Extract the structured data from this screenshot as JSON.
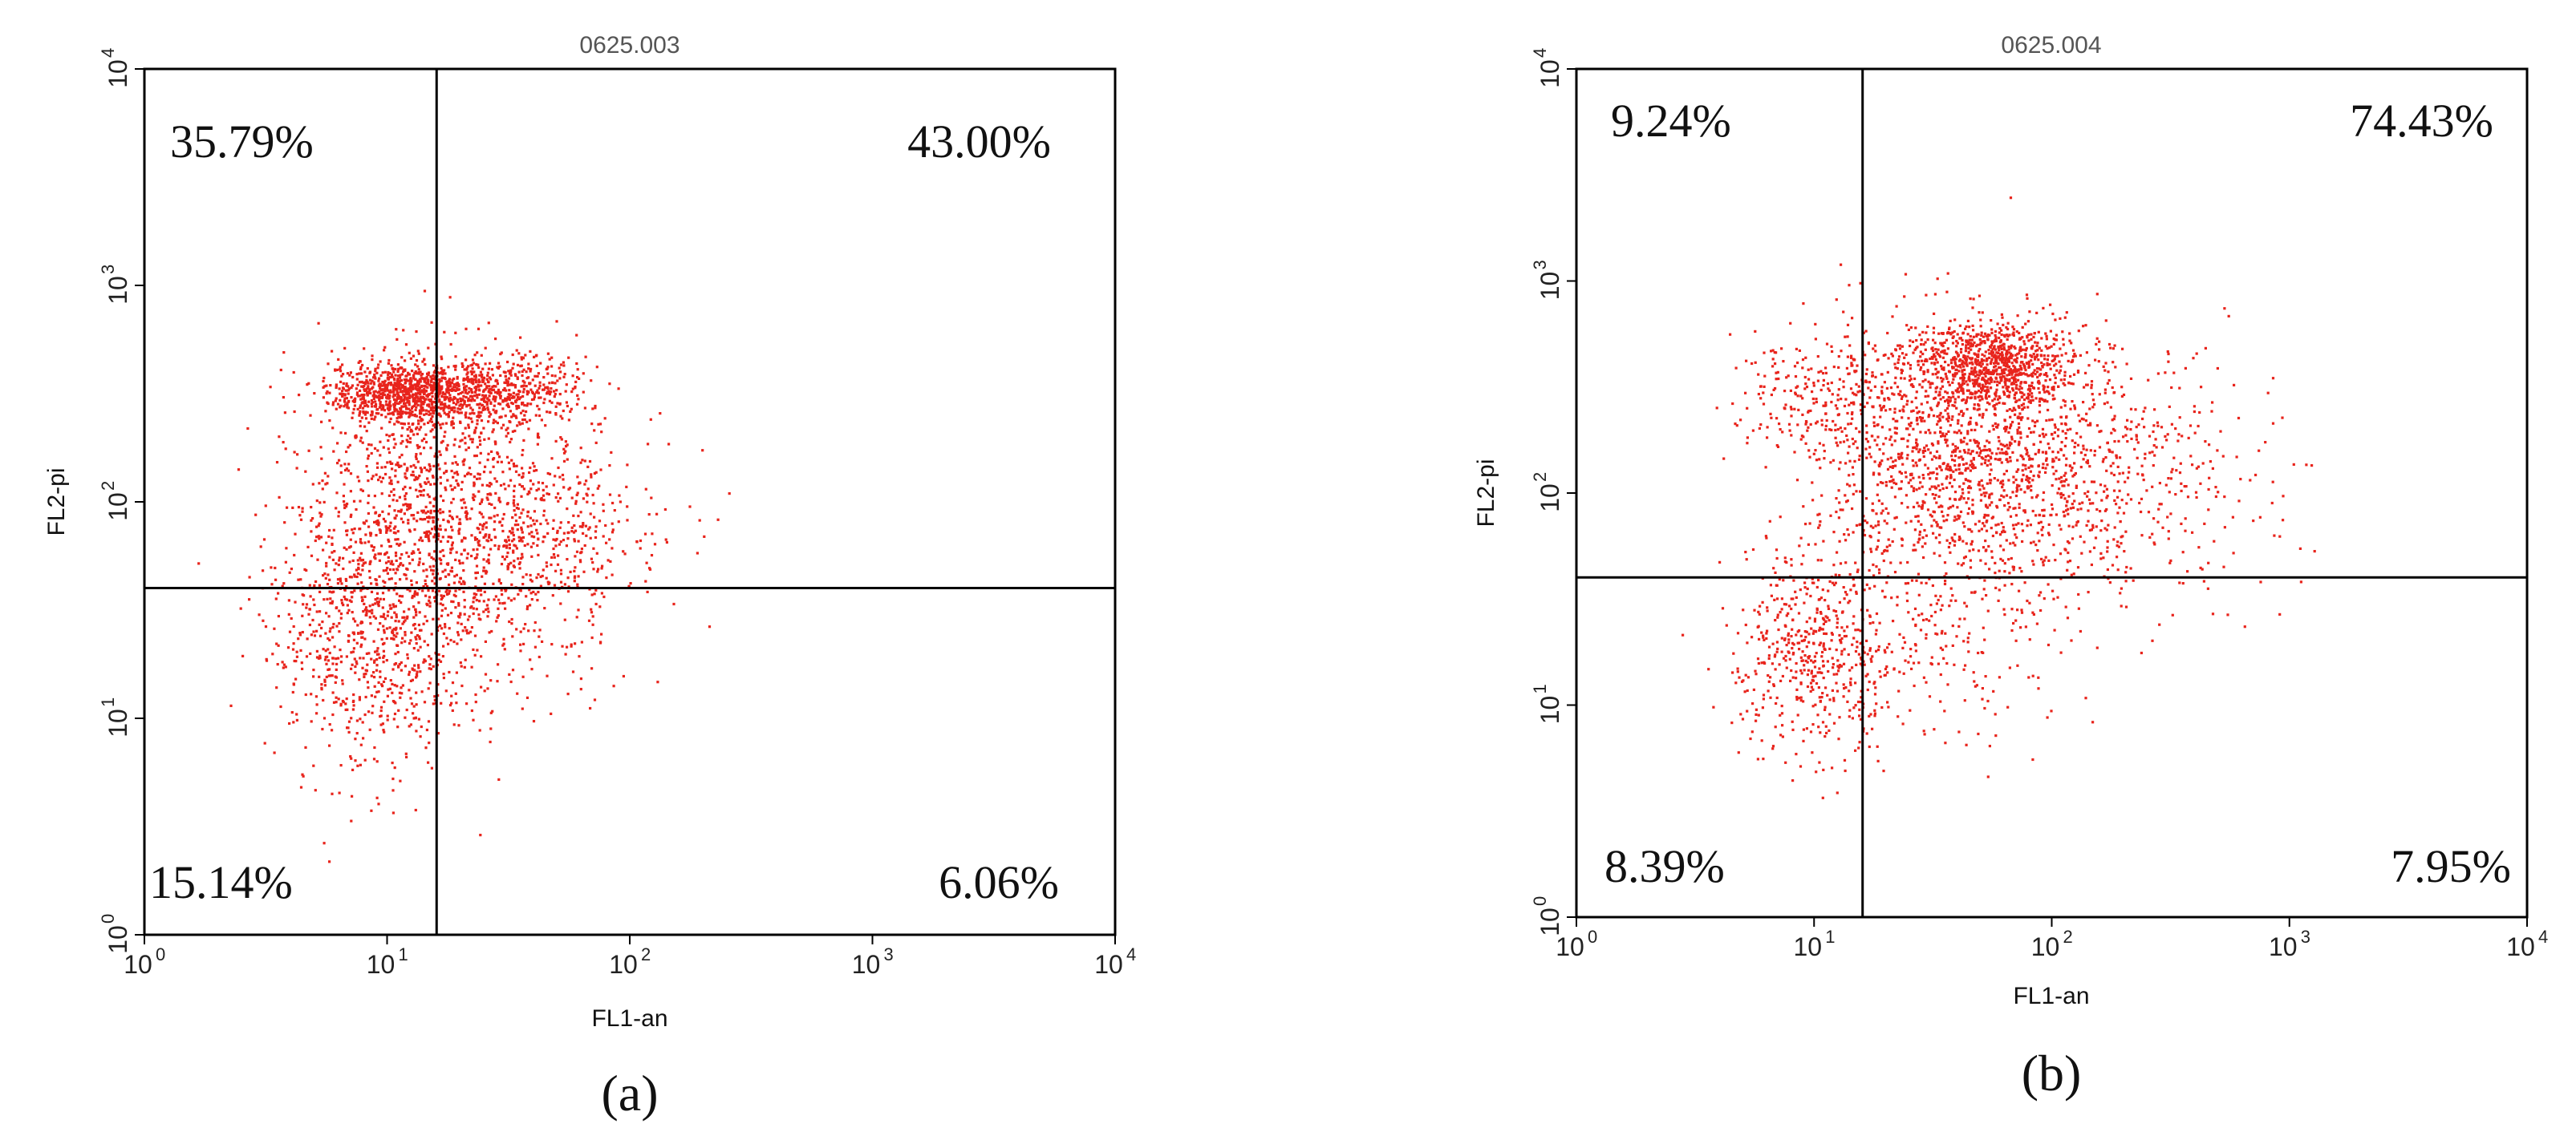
{
  "chart_data": [
    {
      "type": "scatter",
      "panel_label": "(a)",
      "title": "0625.003",
      "xlabel": "FL1-an",
      "ylabel": "FL2-pi",
      "x_scale": "log",
      "y_scale": "log",
      "xlim": [
        1,
        10000
      ],
      "ylim": [
        1,
        10000
      ],
      "x_ticks": [
        {
          "base": "10",
          "exp": "0"
        },
        {
          "base": "10",
          "exp": "1"
        },
        {
          "base": "10",
          "exp": "2"
        },
        {
          "base": "10",
          "exp": "3"
        },
        {
          "base": "10",
          "exp": "4"
        }
      ],
      "y_ticks": [
        {
          "base": "10",
          "exp": "0"
        },
        {
          "base": "10",
          "exp": "1"
        },
        {
          "base": "10",
          "exp": "2"
        },
        {
          "base": "10",
          "exp": "3"
        },
        {
          "base": "10",
          "exp": "4"
        }
      ],
      "quadrant_gate": {
        "x": 16,
        "y": 40
      },
      "quadrants": {
        "upper_left": "35.79%",
        "upper_right": "43.00%",
        "lower_left": "15.14%",
        "lower_right": "6.06%"
      },
      "point_color": "#e8241c",
      "clusters": [
        {
          "cx": 12,
          "cy": 320,
          "sx": 0.16,
          "sy": 0.07,
          "n": 900
        },
        {
          "cx": 30,
          "cy": 330,
          "sx": 0.18,
          "sy": 0.08,
          "n": 500
        },
        {
          "cx": 15,
          "cy": 110,
          "sx": 0.26,
          "sy": 0.32,
          "n": 900
        },
        {
          "cx": 40,
          "cy": 70,
          "sx": 0.28,
          "sy": 0.22,
          "n": 500
        },
        {
          "cx": 8,
          "cy": 25,
          "sx": 0.2,
          "sy": 0.3,
          "n": 700
        },
        {
          "cx": 20,
          "cy": 25,
          "sx": 0.3,
          "sy": 0.25,
          "n": 250
        }
      ]
    },
    {
      "type": "scatter",
      "panel_label": "(b)",
      "title": "0625.004",
      "xlabel": "FL1-an",
      "ylabel": "FL2-pi",
      "x_scale": "log",
      "y_scale": "log",
      "xlim": [
        1,
        10000
      ],
      "ylim": [
        1,
        10000
      ],
      "x_ticks": [
        {
          "base": "10",
          "exp": "0"
        },
        {
          "base": "10",
          "exp": "1"
        },
        {
          "base": "10",
          "exp": "2"
        },
        {
          "base": "10",
          "exp": "3"
        },
        {
          "base": "10",
          "exp": "4"
        }
      ],
      "y_ticks": [
        {
          "base": "10",
          "exp": "0"
        },
        {
          "base": "10",
          "exp": "1"
        },
        {
          "base": "10",
          "exp": "2"
        },
        {
          "base": "10",
          "exp": "3"
        },
        {
          "base": "10",
          "exp": "4"
        }
      ],
      "quadrant_gate": {
        "x": 16,
        "y": 40
      },
      "quadrants": {
        "upper_left": "9.24%",
        "upper_right": "74.43%",
        "lower_left": "8.39%",
        "lower_right": "7.95%"
      },
      "point_color": "#e8241c",
      "clusters": [
        {
          "cx": 55,
          "cy": 400,
          "sx": 0.18,
          "sy": 0.1,
          "n": 900
        },
        {
          "cx": 40,
          "cy": 150,
          "sx": 0.3,
          "sy": 0.3,
          "n": 1200
        },
        {
          "cx": 150,
          "cy": 120,
          "sx": 0.35,
          "sy": 0.3,
          "n": 600
        },
        {
          "cx": 12,
          "cy": 300,
          "sx": 0.2,
          "sy": 0.15,
          "n": 250
        },
        {
          "cx": 10,
          "cy": 18,
          "sx": 0.18,
          "sy": 0.25,
          "n": 500
        },
        {
          "cx": 30,
          "cy": 20,
          "sx": 0.3,
          "sy": 0.25,
          "n": 250
        }
      ]
    }
  ]
}
